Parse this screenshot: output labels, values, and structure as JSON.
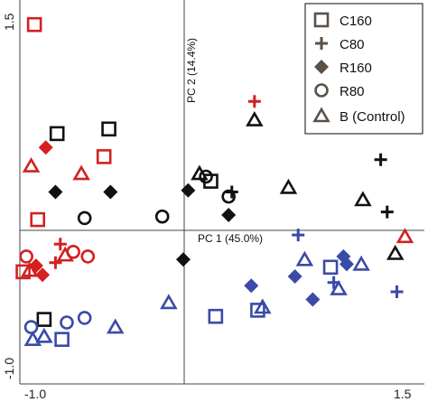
{
  "chart_data": {
    "type": "scatter",
    "title": "",
    "xlim": [
      -1.0,
      1.5
    ],
    "ylim": [
      -1.0,
      1.5
    ],
    "x_ticks": [
      "-1.0",
      "1.5"
    ],
    "y_ticks": [
      "1.5",
      "-1.0"
    ],
    "pc1_label": "PC 1 (45.0%)",
    "pc2_label": "PC 2 (14.4%)",
    "grid": false,
    "legend_position": "top-right",
    "colors": {
      "red": "#d42020",
      "black": "#111111",
      "blue": "#3a4aa8",
      "legend": "#5a5148"
    },
    "legend": [
      {
        "marker": "square",
        "label": "C160"
      },
      {
        "marker": "plus",
        "label": "C80"
      },
      {
        "marker": "diamond",
        "label": "R160"
      },
      {
        "marker": "circle",
        "label": "R80"
      },
      {
        "marker": "triangle",
        "label": "B (Control)"
      }
    ],
    "points": [
      {
        "marker": "square",
        "color": "red",
        "x": -0.91,
        "y": 1.34
      },
      {
        "marker": "triangle",
        "color": "red",
        "x": -0.93,
        "y": 0.42
      },
      {
        "marker": "diamond",
        "color": "red",
        "x": -0.84,
        "y": 0.54
      },
      {
        "marker": "triangle",
        "color": "red",
        "x": -0.62,
        "y": 0.37
      },
      {
        "marker": "square",
        "color": "red",
        "x": -0.48,
        "y": 0.48
      },
      {
        "marker": "square",
        "color": "red",
        "x": -0.89,
        "y": 0.07
      },
      {
        "marker": "plus",
        "color": "red",
        "x": -0.75,
        "y": -0.09
      },
      {
        "marker": "plus",
        "color": "red",
        "x": 0.45,
        "y": 0.84
      },
      {
        "marker": "triangle",
        "color": "red",
        "x": 1.38,
        "y": -0.04
      },
      {
        "marker": "circle",
        "color": "red",
        "x": -0.96,
        "y": -0.17
      },
      {
        "marker": "square",
        "color": "red",
        "x": -0.98,
        "y": -0.27
      },
      {
        "marker": "triangle",
        "color": "red",
        "x": -0.94,
        "y": -0.26
      },
      {
        "marker": "diamond",
        "color": "red",
        "x": -0.9,
        "y": -0.23
      },
      {
        "marker": "diamond",
        "color": "red",
        "x": -0.86,
        "y": -0.29
      },
      {
        "marker": "plus",
        "color": "red",
        "x": -0.78,
        "y": -0.21
      },
      {
        "marker": "triangle",
        "color": "red",
        "x": -0.72,
        "y": -0.16
      },
      {
        "marker": "circle",
        "color": "red",
        "x": -0.67,
        "y": -0.14
      },
      {
        "marker": "circle",
        "color": "red",
        "x": -0.58,
        "y": -0.17
      },
      {
        "marker": "square",
        "color": "black",
        "x": -0.77,
        "y": 0.63
      },
      {
        "marker": "square",
        "color": "black",
        "x": -0.45,
        "y": 0.66
      },
      {
        "marker": "triangle",
        "color": "black",
        "x": 0.45,
        "y": 0.72
      },
      {
        "marker": "diamond",
        "color": "black",
        "x": -0.78,
        "y": 0.25
      },
      {
        "marker": "diamond",
        "color": "black",
        "x": -0.44,
        "y": 0.25
      },
      {
        "marker": "diamond",
        "color": "black",
        "x": 0.04,
        "y": 0.26
      },
      {
        "marker": "triangle",
        "color": "black",
        "x": 0.11,
        "y": 0.37
      },
      {
        "marker": "circle",
        "color": "black",
        "x": 0.15,
        "y": 0.35
      },
      {
        "marker": "square",
        "color": "black",
        "x": 0.18,
        "y": 0.32
      },
      {
        "marker": "plus",
        "color": "black",
        "x": 0.31,
        "y": 0.25
      },
      {
        "marker": "circle",
        "color": "black",
        "x": 0.29,
        "y": 0.22
      },
      {
        "marker": "diamond",
        "color": "black",
        "x": 0.29,
        "y": 0.1
      },
      {
        "marker": "triangle",
        "color": "black",
        "x": 0.66,
        "y": 0.28
      },
      {
        "marker": "plus",
        "color": "black",
        "x": 1.23,
        "y": 0.46
      },
      {
        "marker": "triangle",
        "color": "black",
        "x": 1.12,
        "y": 0.2
      },
      {
        "marker": "plus",
        "color": "black",
        "x": 1.27,
        "y": 0.12
      },
      {
        "marker": "circle",
        "color": "black",
        "x": -0.6,
        "y": 0.08
      },
      {
        "marker": "circle",
        "color": "black",
        "x": -0.12,
        "y": 0.09
      },
      {
        "marker": "diamond",
        "color": "black",
        "x": 0.01,
        "y": -0.19
      },
      {
        "marker": "triangle",
        "color": "black",
        "x": 1.32,
        "y": -0.15
      },
      {
        "marker": "square",
        "color": "black",
        "x": -0.85,
        "y": -0.58
      },
      {
        "marker": "plus",
        "color": "blue",
        "x": 0.72,
        "y": -0.03
      },
      {
        "marker": "triangle",
        "color": "blue",
        "x": 0.76,
        "y": -0.19
      },
      {
        "marker": "diamond",
        "color": "blue",
        "x": 1.0,
        "y": -0.17
      },
      {
        "marker": "diamond",
        "color": "blue",
        "x": 1.02,
        "y": -0.22
      },
      {
        "marker": "triangle",
        "color": "blue",
        "x": 1.11,
        "y": -0.22
      },
      {
        "marker": "square",
        "color": "blue",
        "x": 0.92,
        "y": -0.24
      },
      {
        "marker": "plus",
        "color": "blue",
        "x": 0.94,
        "y": -0.34
      },
      {
        "marker": "triangle",
        "color": "blue",
        "x": 0.97,
        "y": -0.38
      },
      {
        "marker": "diamond",
        "color": "blue",
        "x": 0.7,
        "y": -0.3
      },
      {
        "marker": "diamond",
        "color": "blue",
        "x": 0.81,
        "y": -0.45
      },
      {
        "marker": "plus",
        "color": "blue",
        "x": 1.33,
        "y": -0.4
      },
      {
        "marker": "diamond",
        "color": "blue",
        "x": 0.43,
        "y": -0.36
      },
      {
        "marker": "square",
        "color": "blue",
        "x": 0.47,
        "y": -0.52
      },
      {
        "marker": "triangle",
        "color": "blue",
        "x": 0.5,
        "y": -0.5
      },
      {
        "marker": "square",
        "color": "blue",
        "x": 0.21,
        "y": -0.56
      },
      {
        "marker": "triangle",
        "color": "blue",
        "x": -0.08,
        "y": -0.47
      },
      {
        "marker": "triangle",
        "color": "blue",
        "x": -0.41,
        "y": -0.63
      },
      {
        "marker": "circle",
        "color": "blue",
        "x": -0.6,
        "y": -0.57
      },
      {
        "marker": "circle",
        "color": "blue",
        "x": -0.71,
        "y": -0.6
      },
      {
        "marker": "square",
        "color": "blue",
        "x": -0.74,
        "y": -0.71
      },
      {
        "marker": "triangle",
        "color": "blue",
        "x": -0.92,
        "y": -0.71
      },
      {
        "marker": "circle",
        "color": "blue",
        "x": -0.93,
        "y": -0.63
      },
      {
        "marker": "triangle",
        "color": "blue",
        "x": -0.85,
        "y": -0.69
      }
    ]
  }
}
